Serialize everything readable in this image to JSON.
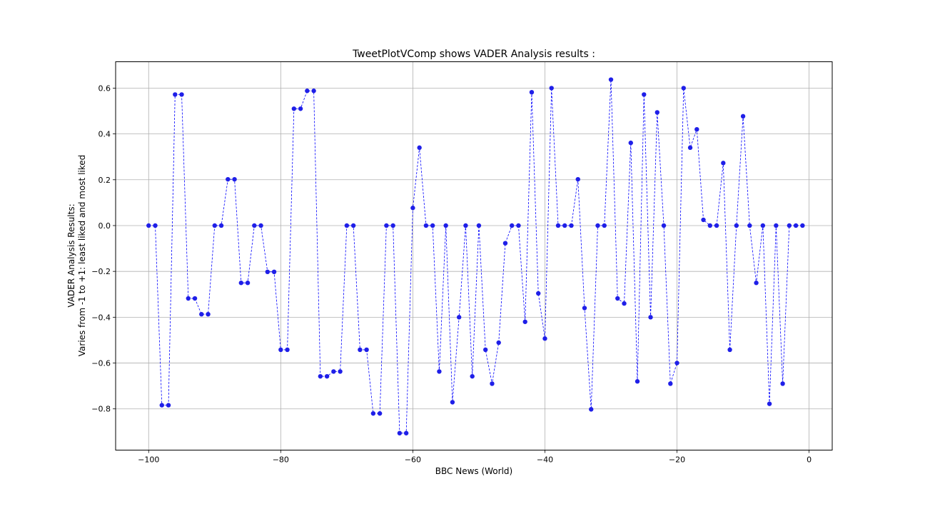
{
  "chart_data": {
    "type": "line",
    "title": "TweetPlotVComp shows VADER Analysis results :",
    "xlabel": "BBC News (World)",
    "ylabel_line1": "VADER Analysis Results:",
    "ylabel_line2": "Varies from -1 to +1: least liked and most liked",
    "xlim": [
      -105,
      3.5
    ],
    "ylim": [
      -0.98,
      0.715
    ],
    "xticks": [
      -100,
      -80,
      -60,
      -40,
      -20,
      0
    ],
    "xtick_labels": [
      "−100",
      "−80",
      "−60",
      "−40",
      "−20",
      "0"
    ],
    "yticks": [
      -0.8,
      -0.6,
      -0.4,
      -0.2,
      0.0,
      0.2,
      0.4,
      0.6
    ],
    "ytick_labels": [
      "−0.8",
      "−0.6",
      "−0.4",
      "−0.2",
      "0.0",
      "0.2",
      "0.4",
      "0.6"
    ],
    "grid": true,
    "line_color": "#0000ff",
    "marker_color": "#1f1fe8",
    "line_style": "dashed",
    "series": [
      {
        "x": [
          -100,
          -99,
          -98,
          -97,
          -96,
          -95,
          -94,
          -93,
          -92,
          -91,
          -90,
          -89,
          -88,
          -87,
          -86,
          -85,
          -84,
          -83,
          -82,
          -81,
          -80,
          -79,
          -78,
          -77,
          -76,
          -75,
          -74,
          -73,
          -72,
          -71,
          -70,
          -69,
          -68,
          -67,
          -66,
          -65,
          -64,
          -63,
          -62,
          -61,
          -60,
          -59,
          -58,
          -57,
          -56,
          -55,
          -54,
          -53,
          -52,
          -51,
          -50,
          -49,
          -48,
          -47,
          -46,
          -45,
          -44,
          -43,
          -42,
          -41,
          -40,
          -39,
          -38,
          -37,
          -36,
          -35,
          -34,
          -33,
          -32,
          -31,
          -30,
          -29,
          -28,
          -27,
          -26,
          -25,
          -24,
          -23,
          -22,
          -21,
          -20,
          -19,
          -18,
          -17,
          -16,
          -15,
          -14,
          -13,
          -12,
          -11,
          -10,
          -9,
          -8,
          -7,
          -6,
          -5,
          -4,
          -3,
          -2,
          -1
        ],
        "values": [
          0,
          0,
          -0.784,
          -0.784,
          0.572,
          0.572,
          -0.318,
          -0.318,
          -0.387,
          -0.387,
          0,
          0,
          0.202,
          0.202,
          -0.25,
          -0.25,
          0,
          0,
          -0.202,
          -0.202,
          -0.542,
          -0.542,
          0.51,
          0.51,
          0.588,
          0.588,
          -0.658,
          -0.658,
          -0.637,
          -0.637,
          0,
          0,
          -0.542,
          -0.542,
          -0.82,
          -0.82,
          0,
          0,
          -0.906,
          -0.906,
          0.077,
          0.34,
          0,
          0,
          -0.637,
          0,
          -0.771,
          -0.4,
          0,
          -0.658,
          0,
          -0.542,
          -0.69,
          -0.511,
          -0.077,
          0,
          0,
          -0.42,
          0.582,
          -0.296,
          -0.493,
          0.6,
          0,
          0,
          0,
          0.202,
          -0.36,
          -0.802,
          0,
          0,
          0.637,
          -0.318,
          -0.34,
          0.361,
          -0.68,
          0.572,
          -0.4,
          0.494,
          0,
          -0.69,
          -0.6,
          0.6,
          0.34,
          0.42,
          0.025,
          0,
          0,
          0.273,
          -0.542,
          0,
          0.477,
          0,
          -0.25,
          0,
          -0.778,
          0,
          -0.69,
          0,
          0,
          0
        ]
      }
    ]
  }
}
